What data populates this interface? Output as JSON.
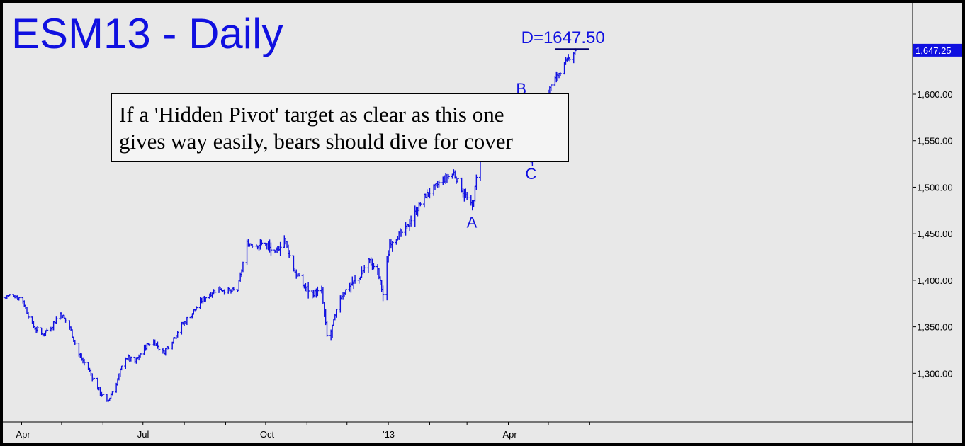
{
  "chart_data": {
    "type": "bar",
    "title": "ESM13 - Daily",
    "callout": [
      "If a 'Hidden Pivot' target as clear as this one",
      "gives way easily, bears should dive for cover"
    ],
    "target_annotation": "D=1647.50",
    "last_price_label": "1,647.25",
    "pivot_labels": [
      {
        "label": "A",
        "date": "2013-03-05",
        "value": 1478
      },
      {
        "label": "B",
        "date": "2013-04-11",
        "value": 1594
      },
      {
        "label": "C",
        "date": "2013-04-18",
        "value": 1530
      }
    ],
    "target_value": 1647.5,
    "ylim": [
      1250,
      1700
    ],
    "y_ticks": [
      1300,
      1350,
      1400,
      1450,
      1500,
      1550,
      1600
    ],
    "y_tick_labels": [
      "1,300.00",
      "1,350.00",
      "1,400.00",
      "1,450.00",
      "1,500.00",
      "1,550.00",
      "1,600.00"
    ],
    "x_ticks": [
      {
        "date": "2012-04-01",
        "label": "Apr"
      },
      {
        "date": "2012-07-01",
        "label": "Jul"
      },
      {
        "date": "2012-10-01",
        "label": "Oct"
      },
      {
        "date": "2013-01-01",
        "label": "'13"
      },
      {
        "date": "2013-04-01",
        "label": "Apr"
      }
    ],
    "keypoints": [
      [
        "2012-03-19",
        1382
      ],
      [
        "2012-03-26",
        1385
      ],
      [
        "2012-04-02",
        1378
      ],
      [
        "2012-04-09",
        1352
      ],
      [
        "2012-04-16",
        1342
      ],
      [
        "2012-04-23",
        1350
      ],
      [
        "2012-04-30",
        1365
      ],
      [
        "2012-05-07",
        1350
      ],
      [
        "2012-05-14",
        1320
      ],
      [
        "2012-05-21",
        1305
      ],
      [
        "2012-05-28",
        1285
      ],
      [
        "2012-06-04",
        1268
      ],
      [
        "2012-06-11",
        1290
      ],
      [
        "2012-06-18",
        1318
      ],
      [
        "2012-06-25",
        1312
      ],
      [
        "2012-07-02",
        1328
      ],
      [
        "2012-07-09",
        1335
      ],
      [
        "2012-07-16",
        1322
      ],
      [
        "2012-07-23",
        1336
      ],
      [
        "2012-07-30",
        1352
      ],
      [
        "2012-08-06",
        1363
      ],
      [
        "2012-08-13",
        1377
      ],
      [
        "2012-08-20",
        1386
      ],
      [
        "2012-08-27",
        1392
      ],
      [
        "2012-09-04",
        1388
      ],
      [
        "2012-09-10",
        1390
      ],
      [
        "2012-09-17",
        1440
      ],
      [
        "2012-09-24",
        1438
      ],
      [
        "2012-10-01",
        1440
      ],
      [
        "2012-10-08",
        1428
      ],
      [
        "2012-10-15",
        1445
      ],
      [
        "2012-10-22",
        1412
      ],
      [
        "2012-10-29",
        1395
      ],
      [
        "2012-11-05",
        1386
      ],
      [
        "2012-11-12",
        1388
      ],
      [
        "2012-11-16",
        1340
      ],
      [
        "2012-11-19",
        1345
      ],
      [
        "2012-11-26",
        1382
      ],
      [
        "2012-12-03",
        1395
      ],
      [
        "2012-12-10",
        1402
      ],
      [
        "2012-12-17",
        1422
      ],
      [
        "2012-12-24",
        1410
      ],
      [
        "2012-12-28",
        1385
      ],
      [
        "2013-01-02",
        1440
      ],
      [
        "2013-01-14",
        1455
      ],
      [
        "2013-01-28",
        1490
      ],
      [
        "2013-02-11",
        1508
      ],
      [
        "2013-02-19",
        1515
      ],
      [
        "2013-02-25",
        1498
      ],
      [
        "2013-03-05",
        1478
      ],
      [
        "2013-03-11",
        1540
      ],
      [
        "2013-03-18",
        1550
      ],
      [
        "2013-03-25",
        1555
      ],
      [
        "2013-04-01",
        1560
      ],
      [
        "2013-04-05",
        1550
      ],
      [
        "2013-04-11",
        1594
      ],
      [
        "2013-04-18",
        1530
      ],
      [
        "2013-04-25",
        1575
      ],
      [
        "2013-05-03",
        1610
      ],
      [
        "2013-05-10",
        1625
      ],
      [
        "2013-05-17",
        1640
      ],
      [
        "2013-05-21",
        1647.25
      ]
    ]
  }
}
